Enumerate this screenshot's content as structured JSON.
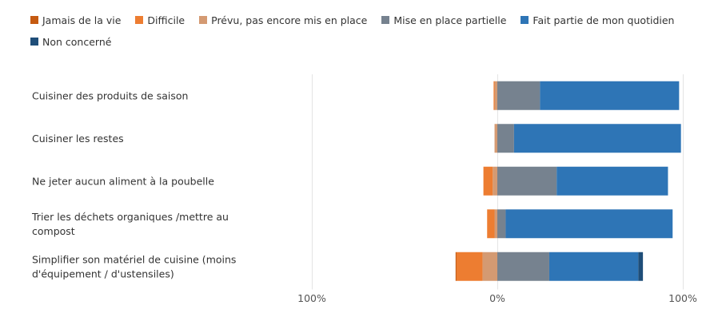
{
  "chart_data": {
    "type": "bar",
    "orientation": "horizontal",
    "stacking": "diverging",
    "title": "",
    "xlabel": "",
    "ylabel": "",
    "xlim": [
      -100,
      100
    ],
    "x_tick_labels": [
      "100%",
      "0%",
      "100%"
    ],
    "grid": true,
    "legend_position": "top",
    "categories": [
      "Cuisiner des produits de saison",
      "Cuisiner les restes",
      "Ne jeter aucun aliment à la poubelle",
      "Trier les déchets organiques /mettre au compost",
      "Simplifier son matériel de cuisine (moins d'équipement / d'ustensiles)"
    ],
    "series": [
      {
        "name": "Jamais de la vie",
        "color": "#c55a11",
        "side": "negative",
        "values": [
          0,
          0,
          0,
          0,
          0.5
        ]
      },
      {
        "name": "Difficile",
        "color": "#ed7d31",
        "side": "negative",
        "values": [
          0.5,
          0,
          5,
          4,
          14
        ]
      },
      {
        "name": "Prévu, pas encore mis en place",
        "color": "#d49a72",
        "side": "negative",
        "values": [
          1.5,
          1.5,
          2.5,
          1.5,
          8
        ]
      },
      {
        "name": "Mise en place partielle",
        "color": "#76828f",
        "side": "positive",
        "values": [
          23,
          9,
          32,
          4.5,
          28
        ]
      },
      {
        "name": "Fait partie de mon quotidien",
        "color": "#2e75b6",
        "side": "positive",
        "values": [
          75,
          90,
          60,
          90,
          48
        ]
      },
      {
        "name": "Non concerné",
        "color": "#1f4e79",
        "side": "positive",
        "values": [
          0,
          0,
          0,
          0,
          2.5
        ]
      }
    ]
  }
}
